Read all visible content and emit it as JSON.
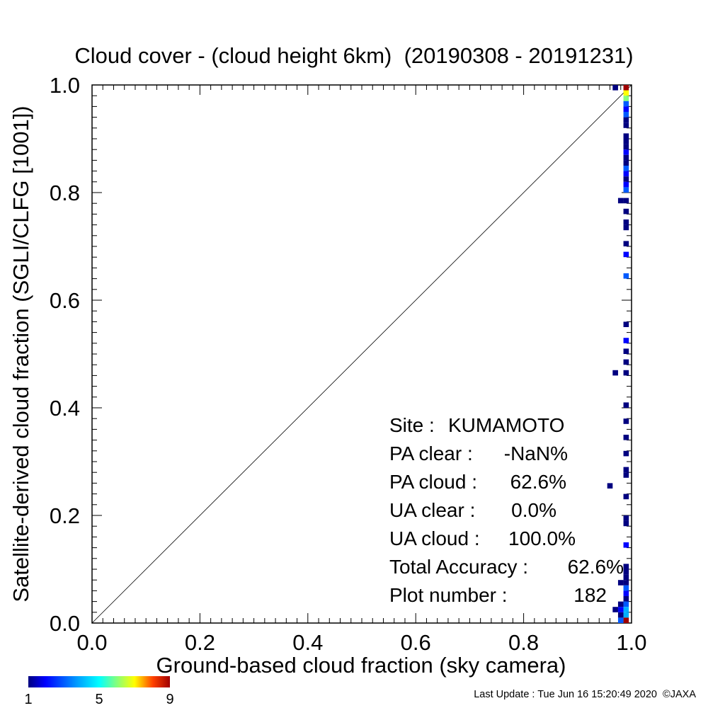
{
  "chart_data": {
    "type": "heatmap",
    "title": "Cloud cover - (cloud height 6km)  (20190308 - 20191231)",
    "xlabel": "Ground-based cloud fraction (sky camera)",
    "ylabel": "Satellite-derived cloud fraction (SGLI/CLFG [1001])",
    "xlim": [
      0.0,
      1.0
    ],
    "ylim": [
      0.0,
      1.0
    ],
    "x_ticks": [
      "0.0",
      "0.2",
      "0.4",
      "0.6",
      "0.8",
      "1.0"
    ],
    "y_ticks": [
      "0.0",
      "0.2",
      "0.4",
      "0.6",
      "0.8",
      "1.0"
    ],
    "grid": false,
    "diagonal_line": true,
    "colorbar": {
      "min": 1,
      "max": 9,
      "ticks": [
        "1",
        "5",
        "9"
      ],
      "colormap": "rainbow (blue-cyan-yellow-red)",
      "placement": "bottom-left"
    },
    "stats": [
      {
        "label": "Site :",
        "value": "KUMAMOTO"
      },
      {
        "label": "PA clear :",
        "value": "-NaN%"
      },
      {
        "label": "PA cloud :",
        "value": "62.6%"
      },
      {
        "label": "UA clear :",
        "value": "0.0%"
      },
      {
        "label": "UA cloud :",
        "value": "100.0%"
      },
      {
        "label": "Total Accuracy :",
        "value": "62.6%"
      },
      {
        "label": "Plot number :",
        "value": "182"
      }
    ],
    "cells": [
      {
        "x": 0.99,
        "y": 0.995,
        "count": 9
      },
      {
        "x": 0.99,
        "y": 0.985,
        "count": 7
      },
      {
        "x": 0.99,
        "y": 0.975,
        "count": 6
      },
      {
        "x": 0.97,
        "y": 0.995,
        "count": 1
      },
      {
        "x": 0.99,
        "y": 0.965,
        "count": 3
      },
      {
        "x": 0.99,
        "y": 0.955,
        "count": 2
      },
      {
        "x": 0.99,
        "y": 0.945,
        "count": 3
      },
      {
        "x": 0.99,
        "y": 0.935,
        "count": 1
      },
      {
        "x": 0.99,
        "y": 0.925,
        "count": 1
      },
      {
        "x": 0.99,
        "y": 0.905,
        "count": 1
      },
      {
        "x": 0.99,
        "y": 0.895,
        "count": 1
      },
      {
        "x": 0.99,
        "y": 0.885,
        "count": 1
      },
      {
        "x": 0.99,
        "y": 0.875,
        "count": 2
      },
      {
        "x": 0.99,
        "y": 0.865,
        "count": 1
      },
      {
        "x": 0.99,
        "y": 0.855,
        "count": 1
      },
      {
        "x": 0.99,
        "y": 0.845,
        "count": 3
      },
      {
        "x": 0.99,
        "y": 0.835,
        "count": 2
      },
      {
        "x": 0.99,
        "y": 0.825,
        "count": 1
      },
      {
        "x": 0.99,
        "y": 0.815,
        "count": 2
      },
      {
        "x": 0.99,
        "y": 0.805,
        "count": 3
      },
      {
        "x": 0.99,
        "y": 0.785,
        "count": 1
      },
      {
        "x": 0.98,
        "y": 0.785,
        "count": 1
      },
      {
        "x": 0.99,
        "y": 0.765,
        "count": 1
      },
      {
        "x": 0.99,
        "y": 0.745,
        "count": 1
      },
      {
        "x": 0.99,
        "y": 0.735,
        "count": 1
      },
      {
        "x": 0.99,
        "y": 0.705,
        "count": 1
      },
      {
        "x": 0.99,
        "y": 0.685,
        "count": 2
      },
      {
        "x": 0.99,
        "y": 0.645,
        "count": 3
      },
      {
        "x": 0.99,
        "y": 0.555,
        "count": 1
      },
      {
        "x": 0.99,
        "y": 0.525,
        "count": 2
      },
      {
        "x": 0.99,
        "y": 0.505,
        "count": 1
      },
      {
        "x": 0.99,
        "y": 0.485,
        "count": 1
      },
      {
        "x": 0.99,
        "y": 0.465,
        "count": 1
      },
      {
        "x": 0.97,
        "y": 0.465,
        "count": 1
      },
      {
        "x": 0.99,
        "y": 0.405,
        "count": 1
      },
      {
        "x": 0.99,
        "y": 0.375,
        "count": 1
      },
      {
        "x": 0.99,
        "y": 0.345,
        "count": 1
      },
      {
        "x": 0.99,
        "y": 0.315,
        "count": 1
      },
      {
        "x": 0.99,
        "y": 0.285,
        "count": 1
      },
      {
        "x": 0.99,
        "y": 0.275,
        "count": 1
      },
      {
        "x": 0.96,
        "y": 0.255,
        "count": 1
      },
      {
        "x": 0.99,
        "y": 0.235,
        "count": 1
      },
      {
        "x": 0.99,
        "y": 0.195,
        "count": 1
      },
      {
        "x": 0.99,
        "y": 0.185,
        "count": 1
      },
      {
        "x": 0.99,
        "y": 0.145,
        "count": 2
      },
      {
        "x": 0.99,
        "y": 0.105,
        "count": 1
      },
      {
        "x": 0.99,
        "y": 0.095,
        "count": 1
      },
      {
        "x": 0.99,
        "y": 0.085,
        "count": 1
      },
      {
        "x": 0.99,
        "y": 0.075,
        "count": 1
      },
      {
        "x": 0.98,
        "y": 0.075,
        "count": 1
      },
      {
        "x": 0.99,
        "y": 0.065,
        "count": 3
      },
      {
        "x": 0.99,
        "y": 0.055,
        "count": 2
      },
      {
        "x": 0.99,
        "y": 0.045,
        "count": 1
      },
      {
        "x": 0.99,
        "y": 0.035,
        "count": 3
      },
      {
        "x": 0.98,
        "y": 0.035,
        "count": 1
      },
      {
        "x": 0.99,
        "y": 0.025,
        "count": 4
      },
      {
        "x": 0.98,
        "y": 0.025,
        "count": 2
      },
      {
        "x": 0.97,
        "y": 0.025,
        "count": 1
      },
      {
        "x": 0.99,
        "y": 0.015,
        "count": 4
      },
      {
        "x": 0.98,
        "y": 0.015,
        "count": 1
      },
      {
        "x": 0.99,
        "y": 0.005,
        "count": 9
      },
      {
        "x": 0.98,
        "y": 0.005,
        "count": 3
      }
    ]
  },
  "footer": {
    "last_update": "Last Update : Tue Jun 16 15:20:49 2020  ©JAXA"
  }
}
